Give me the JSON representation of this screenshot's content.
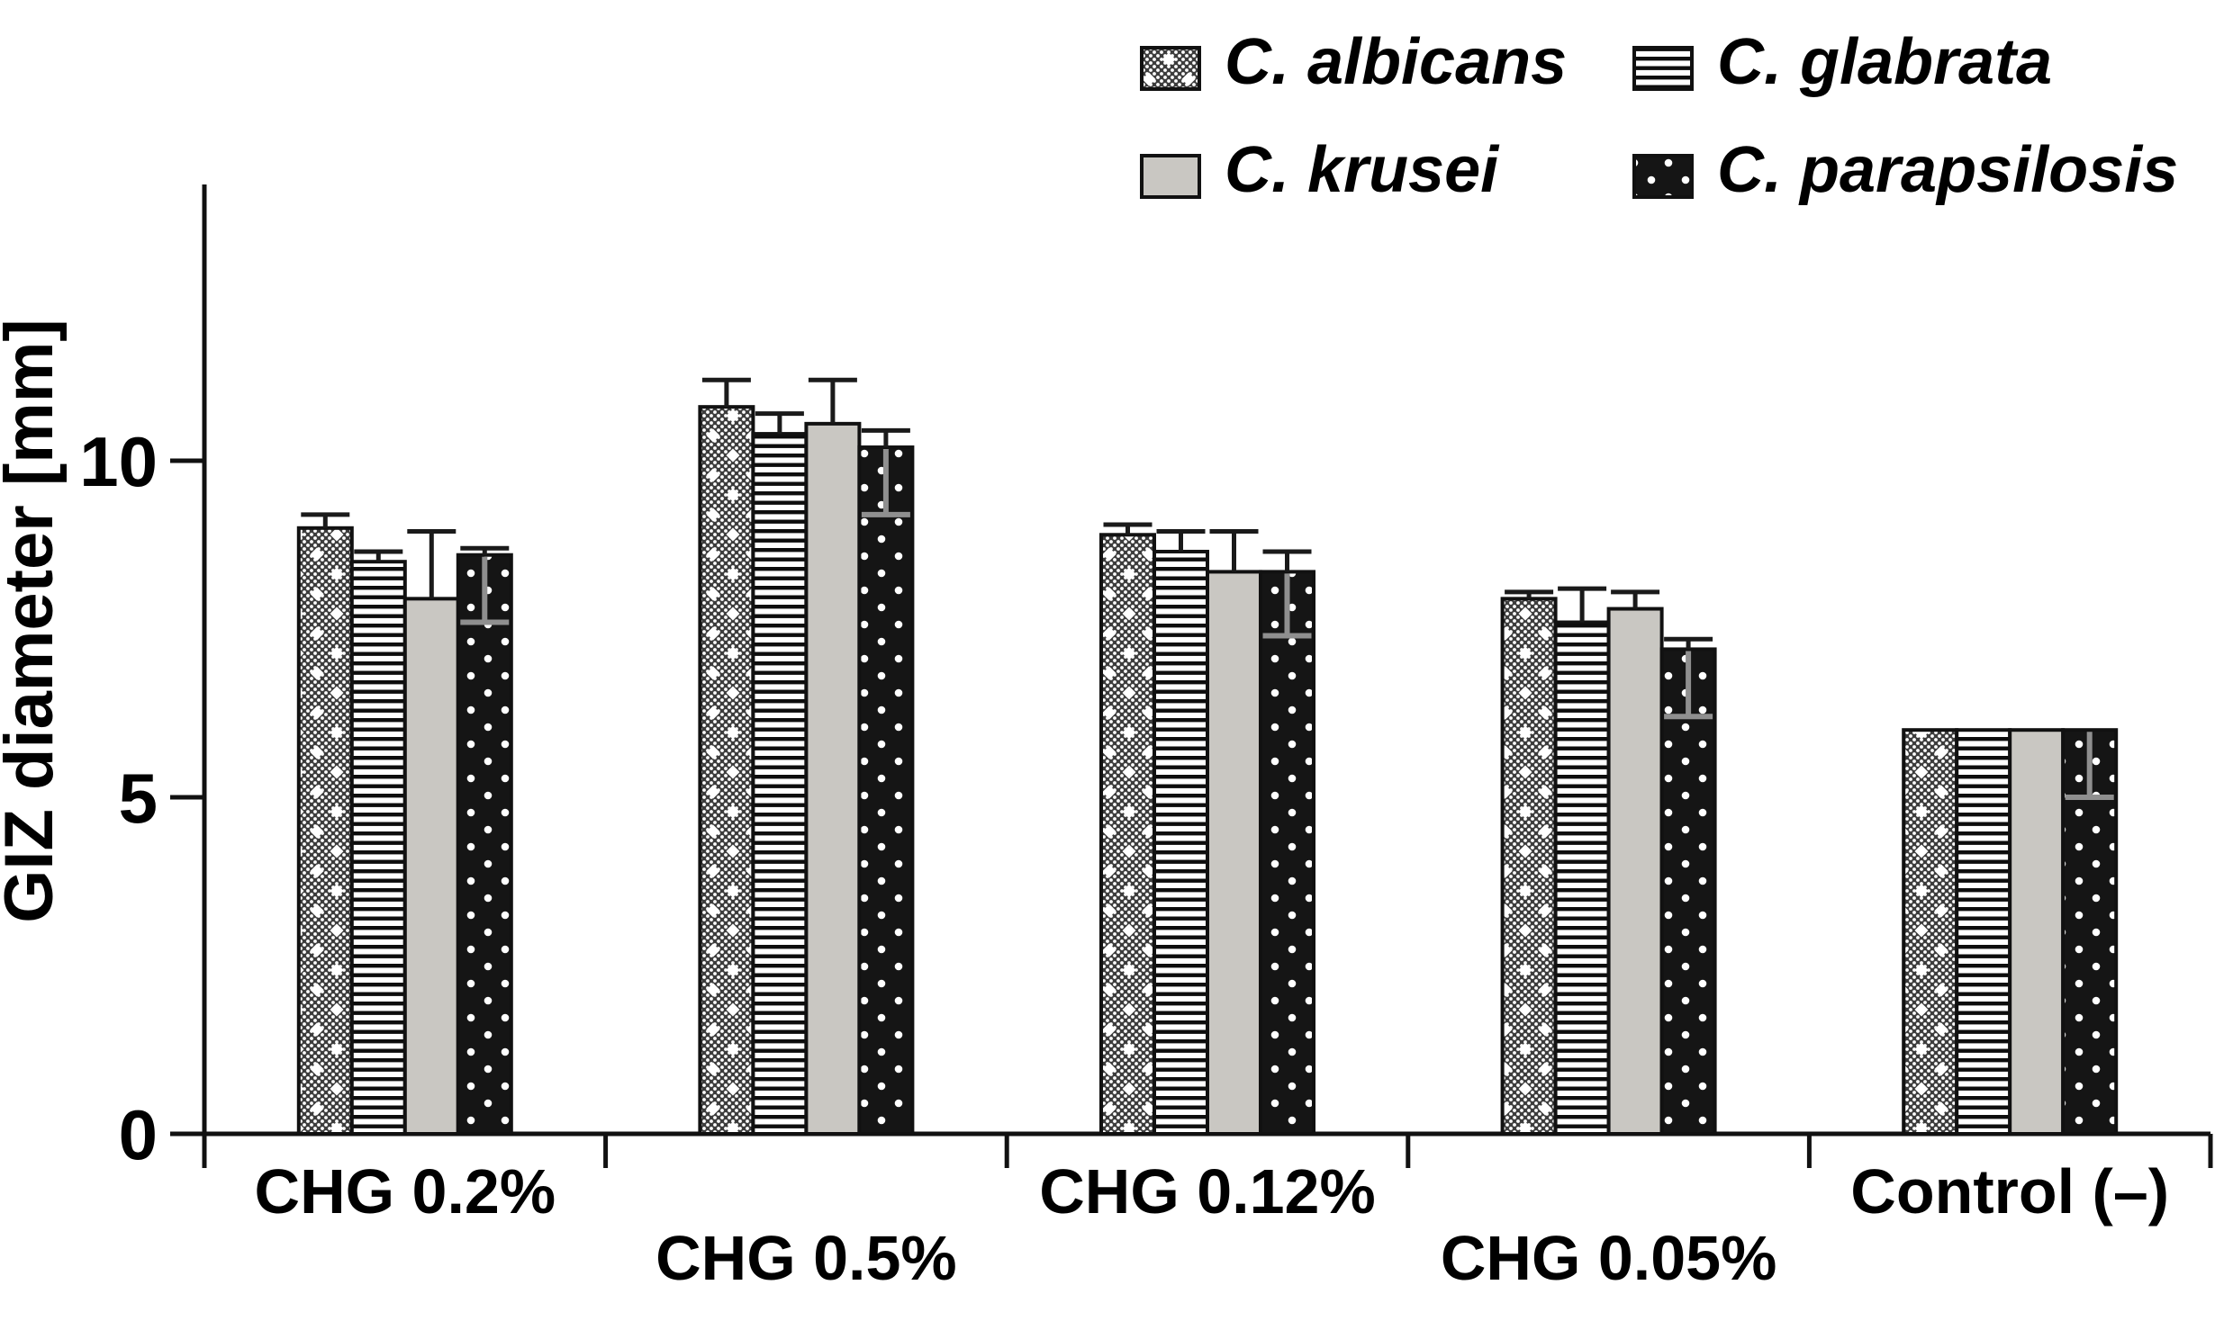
{
  "figure": {
    "background": "#ffffff",
    "axis_color": "#111111",
    "error_bar_color": "#1a1a1a",
    "error_bar_down_color": "#8f8f8f"
  },
  "chart_data": {
    "type": "bar",
    "title": "",
    "xlabel": "",
    "ylabel": "GIZ diameter [mm]",
    "ylim": [
      0,
      14
    ],
    "yticks": [
      0,
      5,
      10
    ],
    "grid": false,
    "legend_position": "top-right",
    "categories": [
      "CHG 0.2%",
      "CHG 0.5%",
      "CHG 0.12%",
      "CHG 0.05%",
      "Control (–)"
    ],
    "category_label_rows": [
      0,
      1,
      0,
      1,
      0
    ],
    "series": [
      {
        "name": "C. albicans",
        "pattern": "diamond-dots",
        "values": [
          9.0,
          10.8,
          8.9,
          7.95,
          6.0
        ],
        "err_up": [
          0.2,
          0.4,
          0.15,
          0.1,
          0
        ]
      },
      {
        "name": "C. glabrata",
        "pattern": "h-stripes",
        "values": [
          8.5,
          10.4,
          8.65,
          7.6,
          6.0
        ],
        "err_up": [
          0.15,
          0.3,
          0.3,
          0.5,
          0
        ]
      },
      {
        "name": "C. krusei",
        "pattern": "solid-gray",
        "color": "#c9c7c2",
        "values": [
          7.95,
          10.55,
          8.35,
          7.8,
          6.0
        ],
        "err_up": [
          1.0,
          0.65,
          0.6,
          0.25,
          0
        ]
      },
      {
        "name": "C. parapsilosis",
        "pattern": "black-dots",
        "values": [
          8.6,
          10.2,
          8.35,
          7.2,
          6.0
        ],
        "err_up": [
          0.1,
          0.25,
          0.3,
          0.15,
          0
        ],
        "err_down": [
          1.0,
          1.0,
          0.95,
          1.0,
          1.0
        ]
      }
    ]
  }
}
